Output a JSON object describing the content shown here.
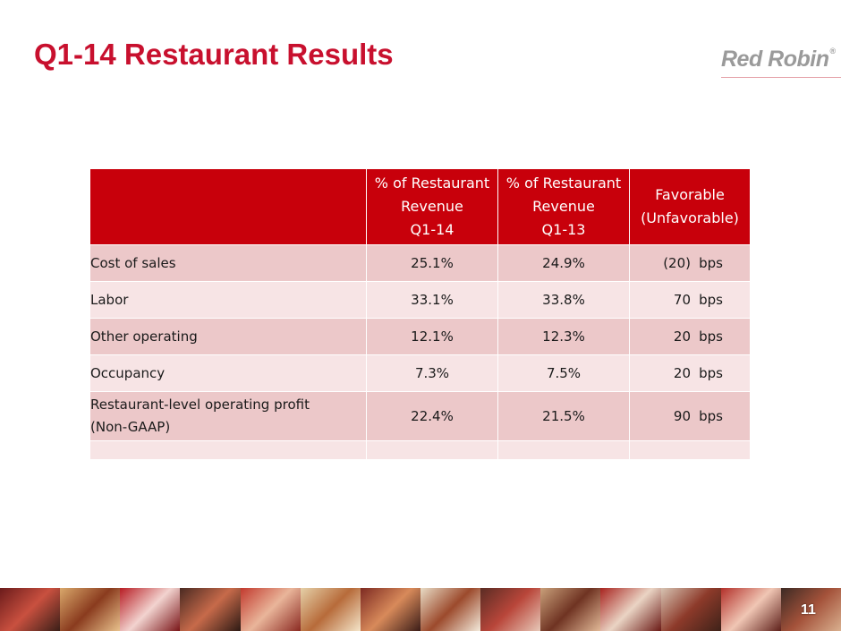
{
  "slide": {
    "title": "Q1-14 Restaurant Results",
    "logo_text": "Red Robin",
    "logo_mark": "®",
    "page_number": "11"
  },
  "colors": {
    "title": "#c8102e",
    "header_bg": "#c8000b",
    "row_dark": "#ecc8c9",
    "row_light": "#f7e4e5",
    "logo": "#9a9a9a"
  },
  "table": {
    "headers": [
      {
        "lines": [
          ""
        ]
      },
      {
        "lines": [
          "% of Restaurant",
          "Revenue",
          "Q1-14"
        ]
      },
      {
        "lines": [
          "% of Restaurant",
          "Revenue",
          "Q1-13"
        ]
      },
      {
        "lines": [
          "Favorable",
          "(Unfavorable)"
        ]
      }
    ],
    "rows": [
      {
        "label": [
          "Cost of sales"
        ],
        "q1_14": "25.1%",
        "q1_13": "24.9%",
        "change": "(20)",
        "unit": "bps"
      },
      {
        "label": [
          "Labor"
        ],
        "q1_14": "33.1%",
        "q1_13": "33.8%",
        "change": "70",
        "unit": "bps"
      },
      {
        "label": [
          "Other operating"
        ],
        "q1_14": "12.1%",
        "q1_13": "12.3%",
        "change": "20",
        "unit": "bps"
      },
      {
        "label": [
          "Occupancy"
        ],
        "q1_14": "7.3%",
        "q1_13": "7.5%",
        "change": "20",
        "unit": "bps"
      },
      {
        "label": [
          "Restaurant-level operating profit",
          "(Non-GAAP)"
        ],
        "q1_14": "22.4%",
        "q1_13": "21.5%",
        "change": "90",
        "unit": "bps"
      }
    ]
  }
}
